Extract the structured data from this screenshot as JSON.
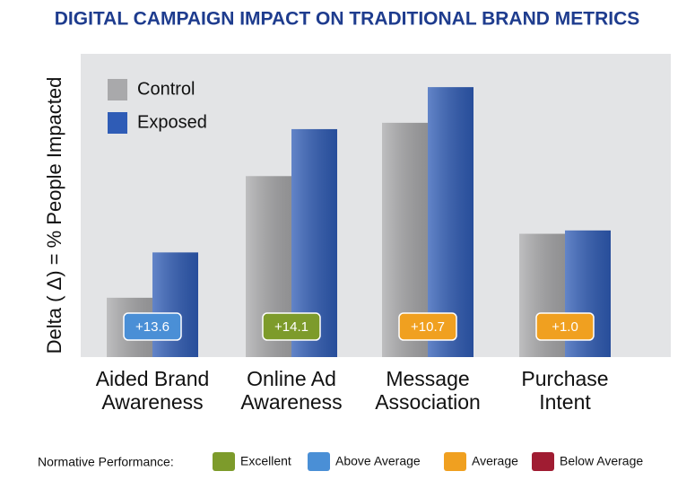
{
  "chart_data": {
    "type": "bar",
    "title": "DIGITAL CAMPAIGN IMPACT ON TRADITIONAL BRAND METRICS",
    "y_label": "Delta ( Δ) = % People Impacted",
    "categories": [
      "Aided Brand\nAwareness",
      "Online Ad\nAwareness",
      "Message\nAssociation",
      "Purchase\nIntent"
    ],
    "series": [
      {
        "name": "Control",
        "color": "#a9a9ab",
        "values": [
          17.8,
          54.3,
          70.3,
          37.0
        ]
      },
      {
        "name": "Exposed",
        "color": "#2f5cb6",
        "values": [
          31.4,
          68.4,
          81.0,
          38.0
        ]
      }
    ],
    "deltas": [
      13.6,
      14.1,
      10.7,
      1.0
    ],
    "delta_labels": [
      "+13.6",
      "+14.1",
      "+10.7",
      "+1.0"
    ],
    "delta_colors": [
      "#4a8fd6",
      "#7d9b2b",
      "#f0a020",
      "#f0a020"
    ],
    "ylim": [
      0,
      91
    ],
    "grid": false,
    "legend": "top-left",
    "normative": {
      "title": "Normative Performance:",
      "items": [
        {
          "name": "Excellent",
          "color": "#7d9b2b"
        },
        {
          "name": "Above Average",
          "color": "#4a8fd6"
        },
        {
          "name": "Average",
          "color": "#f0a020"
        },
        {
          "name": "Below Average",
          "color": "#a01c32"
        }
      ]
    }
  }
}
